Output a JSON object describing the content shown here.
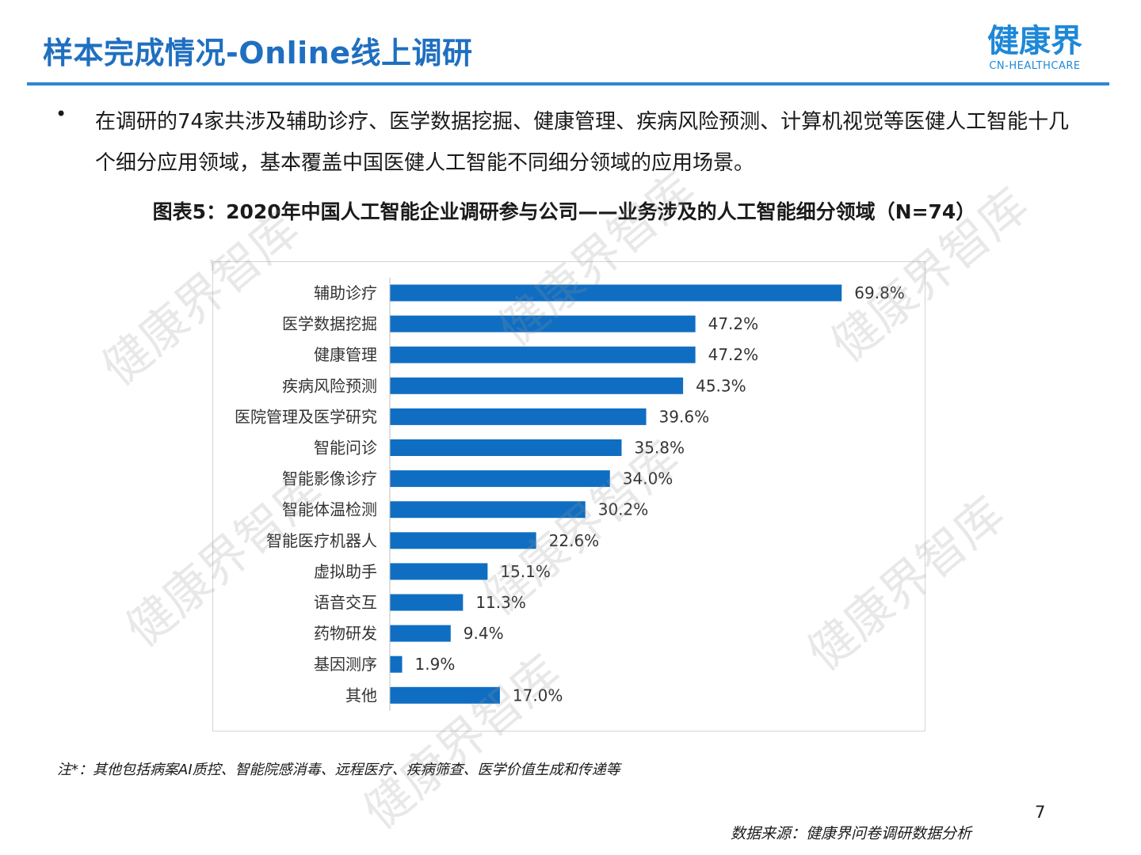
{
  "header": {
    "title": "样本完成情况-Online线上调研",
    "logo_cn": "健康界",
    "logo_en": "CN-HEALTHCARE"
  },
  "bullet": {
    "symbol": "•",
    "text": "在调研的74家共涉及辅助诊疗、医学数据挖掘、健康管理、疾病风险预测、计算机视觉等医健人工智能十几个细分应用领域，基本覆盖中国医健人工智能不同细分领域的应用场景。"
  },
  "watermark": "健康界智库",
  "chart_data": {
    "type": "bar",
    "orientation": "horizontal",
    "title": "图表5：2020年中国人工智能企业调研参与公司——业务涉及的人工智能细分领域（N=74）",
    "categories": [
      "辅助诊疗",
      "医学数据挖掘",
      "健康管理",
      "疾病风险预测",
      "医院管理及医学研究",
      "智能问诊",
      "智能影像诊疗",
      "智能体温检测",
      "智能医疗机器人",
      "虚拟助手",
      "语音交互",
      "药物研发",
      "基因测序",
      "其他"
    ],
    "values": [
      69.8,
      47.2,
      47.2,
      45.3,
      39.6,
      35.8,
      34.0,
      30.2,
      22.6,
      15.1,
      11.3,
      9.4,
      1.9,
      17.0
    ],
    "value_labels": [
      "69.8%",
      "47.2%",
      "47.2%",
      "45.3%",
      "39.6%",
      "35.8%",
      "34.0%",
      "30.2%",
      "22.6%",
      "15.1%",
      "11.3%",
      "9.4%",
      "1.9%",
      "17.0%"
    ],
    "xlim": [
      0,
      100
    ],
    "grid": false,
    "bar_color": "#0f6ec2"
  },
  "footer": {
    "note": "注*：其他包括病案AI质控、智能院感消毒、远程医疗、疾病筛查、医学价值生成和传递等",
    "page_number": "7",
    "source": "数据来源：健康界问卷调研数据分析"
  }
}
